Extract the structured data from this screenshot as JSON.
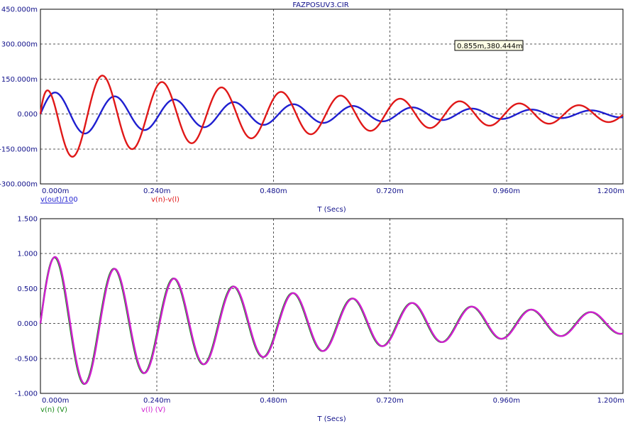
{
  "title": "FAZPOSUV3.CIR",
  "cursor_readout": "0.855m,380.444m",
  "chart_data": [
    {
      "type": "line",
      "xlabel": "T (Secs)",
      "xlim": [
        0,
        0.0012
      ],
      "ylim": [
        -0.3,
        0.45
      ],
      "x_ticks": [
        "0.000m",
        "0.240m",
        "0.480m",
        "0.720m",
        "0.960m",
        "1.200m"
      ],
      "y_ticks": [
        "450.000m",
        "300.000m",
        "150.000m",
        "0.000",
        "-150.000m",
        "-300.000m"
      ],
      "grid": true,
      "series": [
        {
          "name": "v(out)/100",
          "color": "#1f1fd0",
          "model": {
            "amp": 0.097,
            "freq_hz": 8150,
            "decay_per_s": 1600,
            "phase_offset_s": 3.07e-05,
            "start": "zero"
          },
          "peaks": [
            {
              "x": 3.07e-05,
              "y": 0.095
            },
            {
              "x": 0.000153,
              "y": 0.08
            },
            {
              "x": 0.000276,
              "y": 0.065
            },
            {
              "x": 0.000398,
              "y": 0.045
            },
            {
              "x": 0.000521,
              "y": 0.035
            }
          ]
        },
        {
          "name": "v(n)-v(l)",
          "color": "#e01818",
          "model": {
            "amp": 0.2,
            "freq_hz": 8150,
            "decay_per_s": 1500,
            "phase_offset_s": 5.4e-06,
            "start": "zero"
          },
          "peaks": [
            {
              "x": 8e-06,
              "y": 0.15
            },
            {
              "x": 5.5e-05,
              "y": -0.2
            },
            {
              "x": 0.00011,
              "y": 0.135
            },
            {
              "x": 0.000172,
              "y": -0.105
            },
            {
              "x": 0.000233,
              "y": 0.085
            }
          ]
        }
      ]
    },
    {
      "type": "line",
      "xlabel": "T (Secs)",
      "xlim": [
        0,
        0.0012
      ],
      "ylim": [
        -1.0,
        1.5
      ],
      "x_ticks": [
        "0.000m",
        "0.240m",
        "0.480m",
        "0.720m",
        "0.960m",
        "1.200m"
      ],
      "y_ticks": [
        "1.500",
        "1.000",
        "0.500",
        "0.000",
        "-0.500",
        "-1.000"
      ],
      "grid": true,
      "series": [
        {
          "name": "v(n) (V)",
          "color": "#1a8a1a",
          "model": {
            "amp": 1.0,
            "freq_hz": 8150,
            "decay_per_s": 1600,
            "phase_offset_s": 2.94e-05,
            "start": "zero"
          },
          "peaks": [
            {
              "x": 2.23e-05,
              "y": 0.96
            },
            {
              "x": 8.37e-05,
              "y": -0.86
            },
            {
              "x": 0.000145,
              "y": 0.79
            },
            {
              "x": 0.000206,
              "y": -0.7
            },
            {
              "x": 0.000267,
              "y": 0.64
            },
            {
              "x": 0.00039,
              "y": 0.43
            },
            {
              "x": 0.000758,
              "y": 0.22
            },
            {
              "x": 0.001126,
              "y": 0.11
            }
          ]
        },
        {
          "name": "v(l) (V)",
          "color": "#d020d0",
          "model": {
            "amp": 1.0,
            "freq_hz": 8150,
            "decay_per_s": 1600,
            "phase_offset_s": 3.07e-05,
            "start": "zero"
          },
          "peaks": [
            {
              "x": 2.45e-05,
              "y": 0.95
            },
            {
              "x": 8.6e-05,
              "y": -0.86
            },
            {
              "x": 0.000147,
              "y": 0.78
            },
            {
              "x": 0.00027,
              "y": 0.64
            },
            {
              "x": 0.000393,
              "y": 0.43
            },
            {
              "x": 0.00076,
              "y": 0.22
            },
            {
              "x": 0.001128,
              "y": 0.11
            }
          ]
        }
      ]
    }
  ]
}
